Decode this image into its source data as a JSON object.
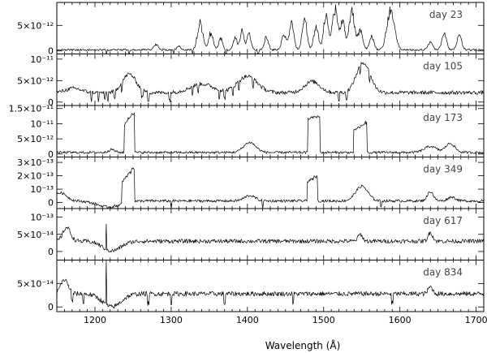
{
  "chart_data": {
    "type": "line",
    "xlabel": "Wavelength (Å)",
    "xlim": [
      1150,
      1710
    ],
    "x_ticks": [
      1200,
      1300,
      1400,
      1500,
      1600,
      1700
    ],
    "panels": [
      {
        "name": "day 23",
        "ylim": [
          -6e-13,
          9.5e-12
        ],
        "yticks": [
          {
            "v": 0,
            "label": "0"
          },
          {
            "v": 5e-12,
            "label": "5×10⁻¹²"
          }
        ],
        "baseline": 2e-13,
        "noise": 1.8e-13,
        "lines": [
          [
            1280,
            2.5,
            1.2e-12
          ],
          [
            1310,
            2.5,
            8e-13
          ],
          [
            1338,
            3.5,
            5.2e-12
          ],
          [
            1352,
            3.0,
            3.2e-12
          ],
          [
            1365,
            2.5,
            2.2e-12
          ],
          [
            1384,
            2.5,
            2.4e-12
          ],
          [
            1393,
            2.5,
            3.6e-12
          ],
          [
            1402,
            2.5,
            3.2e-12
          ],
          [
            1425,
            2.5,
            2.6e-12
          ],
          [
            1448,
            3.0,
            3e-12
          ],
          [
            1458,
            3.0,
            5e-12
          ],
          [
            1475,
            3.0,
            6.2e-12
          ],
          [
            1490,
            3.0,
            4.5e-12
          ],
          [
            1503,
            3.0,
            6.8e-12
          ],
          [
            1515,
            3.5,
            8e-12
          ],
          [
            1525,
            3.0,
            5.5e-12
          ],
          [
            1537,
            3.5,
            7.6e-12
          ],
          [
            1548,
            3.0,
            4e-12
          ],
          [
            1563,
            3.0,
            2.5e-12
          ],
          [
            1588,
            5.0,
            7.6e-12
          ],
          [
            1640,
            3.0,
            1.5e-12
          ],
          [
            1658,
            3.0,
            3.2e-12
          ],
          [
            1678,
            3.0,
            2.8e-12
          ]
        ],
        "drops": [
          1215,
          1245,
          1303,
          1328,
          1372,
          1414
        ]
      },
      {
        "name": "day 105",
        "ylim": [
          -8e-13,
          1.12e-11
        ],
        "yticks": [
          {
            "v": 0,
            "label": "0"
          },
          {
            "v": 5e-12,
            "label": "5×10⁻¹²"
          },
          {
            "v": 1e-11,
            "label": "10⁻¹¹"
          }
        ],
        "baseline": 2.2e-12,
        "noise": 4.5e-13,
        "bumps": [
          [
            1245,
            9,
            4.3e-12
          ],
          [
            1340,
            15,
            2e-12
          ],
          [
            1400,
            13,
            3.8e-12
          ],
          [
            1485,
            10,
            2.6e-12
          ],
          [
            1552,
            9,
            7e-12
          ],
          [
            1172,
            10,
            1e-12
          ]
        ],
        "drops": [
          1195,
          1205,
          1213,
          1217,
          1226,
          1235,
          1262,
          1270,
          1298,
          1328,
          1335,
          1363,
          1370,
          1381,
          1389,
          1407,
          1520,
          1530,
          1548,
          1560
        ]
      },
      {
        "name": "day 173",
        "ylim": [
          -1e-12,
          1.6e-11
        ],
        "yticks": [
          {
            "v": 0,
            "label": "0"
          },
          {
            "v": 5e-12,
            "label": "5×10⁻¹²"
          },
          {
            "v": 1e-11,
            "label": "10⁻¹¹"
          },
          {
            "v": 1.5e-11,
            "label": "1.5×10⁻¹¹"
          }
        ],
        "baseline": 5e-13,
        "noise": 4e-13,
        "boxes": [
          [
            1238,
            1252,
            9e-12,
            1.4e-11
          ],
          [
            1479,
            1495,
            1.12e-11,
            1.2e-11
          ],
          [
            1539,
            1557,
            7e-12,
            1e-11
          ]
        ],
        "bumps": [
          [
            1403,
            8,
            3.3e-12
          ],
          [
            1640,
            8,
            2e-12
          ],
          [
            1666,
            6,
            3e-12
          ],
          [
            1222,
            4,
            1e-12
          ]
        ]
      },
      {
        "name": "day 349",
        "ylim": [
          -4.5e-14,
          3.4e-13
        ],
        "yticks": [
          {
            "v": 0,
            "label": "0"
          },
          {
            "v": 1e-13,
            "label": "10⁻¹³"
          },
          {
            "v": 2e-13,
            "label": "2×10⁻¹³"
          },
          {
            "v": 3e-13,
            "label": "3×10⁻¹³"
          }
        ],
        "baseline": 1.2e-14,
        "noise": 1e-14,
        "boxes": [
          [
            1235,
            1252,
            1.6e-13,
            2.6e-13
          ],
          [
            1478,
            1492,
            1.4e-13,
            1.9e-13
          ]
        ],
        "bumps": [
          [
            1403,
            7,
            4e-14
          ],
          [
            1550,
            8,
            1.1e-13
          ],
          [
            1640,
            4,
            7e-14
          ],
          [
            1668,
            5,
            3e-14
          ],
          [
            1155,
            8,
            6e-14
          ]
        ],
        "dip": [
          1218,
          15,
          -4.5e-14
        ],
        "drops": [
          1300,
          1420,
          1575
        ]
      },
      {
        "name": "day 617",
        "ylim": [
          -2.5e-14,
          1.25e-13
        ],
        "yticks": [
          {
            "v": 0,
            "label": "0"
          },
          {
            "v": 5e-14,
            "label": "5×10⁻¹⁴"
          },
          {
            "v": 1e-13,
            "label": "10⁻¹³"
          }
        ],
        "baseline": 3e-14,
        "noise": 6e-15,
        "bumps": [
          [
            1548,
            3,
            2e-14
          ],
          [
            1640,
            3,
            2.5e-14
          ],
          [
            1163,
            5,
            4e-14
          ]
        ],
        "dip": [
          1222,
          12,
          -2.8e-14
        ],
        "spike": [
          1215,
          8e-14
        ],
        "drops": []
      },
      {
        "name": "day 834",
        "ylim": [
          -1e-14,
          1e-13
        ],
        "yticks": [
          {
            "v": 0,
            "label": "0"
          },
          {
            "v": 5e-14,
            "label": "5×10⁻¹⁴"
          }
        ],
        "baseline": 2.8e-14,
        "noise": 5e-15,
        "bumps": [
          [
            1160,
            5,
            3e-14
          ],
          [
            1640,
            3,
            1.5e-14
          ]
        ],
        "dip": [
          1222,
          12,
          -2.8e-14
        ],
        "spike": [
          1215,
          1e-13
        ],
        "drops": [
          1170,
          1185,
          1270,
          1300,
          1370,
          1460,
          1590
        ]
      }
    ]
  }
}
